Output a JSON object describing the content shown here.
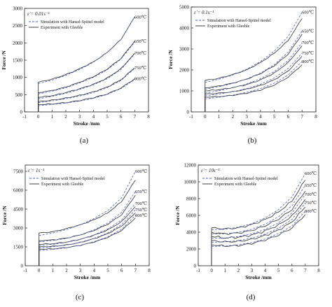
{
  "chart_data": [
    {
      "type": "line",
      "panel_label": "(a)",
      "rate_label": "ε̇ = 0.01s⁻¹",
      "xlabel": "Stroke /mm",
      "ylabel": "Force /N",
      "xlim": [
        -1,
        8
      ],
      "ylim": [
        0,
        3000
      ],
      "x_ticks": [
        "-1",
        "0",
        "1",
        "2",
        "3",
        "4",
        "5",
        "6",
        "7",
        "8"
      ],
      "y_ticks": [
        "0",
        "500",
        "1000",
        "1500",
        "2000",
        "2500",
        "3000"
      ],
      "legend": {
        "placement": "top-left",
        "entries": [
          "Simulation with Hansel-Spittel model",
          "Experiment with Gleeble"
        ]
      },
      "x": [
        0,
        1,
        2,
        3,
        4,
        5,
        6,
        7
      ],
      "series": [
        {
          "name": "600℃",
          "experiment": [
            860,
            950,
            1080,
            1250,
            1450,
            1720,
            2100,
            2750
          ],
          "simulation": [
            820,
            920,
            1060,
            1230,
            1440,
            1720,
            2100,
            2750
          ]
        },
        {
          "name": "650℃",
          "experiment": [
            560,
            620,
            720,
            860,
            1020,
            1240,
            1550,
            2050
          ],
          "simulation": [
            520,
            600,
            700,
            840,
            1000,
            1220,
            1530,
            2020
          ]
        },
        {
          "name": "700℃",
          "experiment": [
            420,
            470,
            560,
            670,
            800,
            980,
            1250,
            1700
          ],
          "simulation": [
            380,
            450,
            540,
            650,
            780,
            960,
            1230,
            1680
          ]
        },
        {
          "name": "750℃",
          "experiment": [
            300,
            340,
            400,
            480,
            580,
            720,
            930,
            1280
          ],
          "simulation": [
            270,
            320,
            380,
            460,
            560,
            700,
            910,
            1260
          ]
        },
        {
          "name": "800℃",
          "experiment": [
            210,
            230,
            270,
            330,
            410,
            520,
            690,
            960
          ],
          "simulation": [
            180,
            215,
            255,
            315,
            395,
            505,
            675,
            940
          ]
        }
      ]
    },
    {
      "type": "line",
      "panel_label": "(b)",
      "rate_label": "ε̇ = 0.1s⁻¹",
      "xlabel": "Stroke /mm",
      "ylabel": "Force /N",
      "xlim": [
        -1,
        8
      ],
      "ylim": [
        0,
        5000
      ],
      "x_ticks": [
        "-1",
        "0",
        "1",
        "2",
        "3",
        "4",
        "5",
        "6",
        "7",
        "8"
      ],
      "y_ticks": [
        "0",
        "1000",
        "2000",
        "3000",
        "4000",
        "5000"
      ],
      "legend": {
        "placement": "top-left",
        "entries": [
          "Simulation with Hansel-Spittel model",
          "Experiment with Gleeble"
        ]
      },
      "x": [
        0,
        1,
        2,
        3,
        4,
        5,
        6,
        7
      ],
      "series": [
        {
          "name": "600℃",
          "experiment": [
            1500,
            1600,
            1780,
            2000,
            2350,
            2800,
            3400,
            4450
          ],
          "simulation": [
            1400,
            1560,
            1760,
            2030,
            2400,
            2900,
            3600,
            4750
          ]
        },
        {
          "name": "650℃",
          "experiment": [
            1150,
            1230,
            1370,
            1560,
            1820,
            2200,
            2750,
            3700
          ],
          "simulation": [
            1080,
            1200,
            1360,
            1570,
            1850,
            2250,
            2850,
            3850
          ]
        },
        {
          "name": "700℃",
          "experiment": [
            1000,
            1060,
            1160,
            1300,
            1520,
            1850,
            2350,
            3150
          ],
          "simulation": [
            900,
            1010,
            1150,
            1330,
            1580,
            1930,
            2450,
            3300
          ]
        },
        {
          "name": "750℃",
          "experiment": [
            850,
            890,
            960,
            1080,
            1260,
            1530,
            1950,
            2650
          ],
          "simulation": [
            760,
            850,
            960,
            1110,
            1320,
            1620,
            2070,
            2800
          ]
        },
        {
          "name": "800℃",
          "experiment": [
            700,
            730,
            790,
            890,
            1040,
            1280,
            1650,
            2250
          ],
          "simulation": [
            620,
            700,
            800,
            930,
            1110,
            1370,
            1760,
            2400
          ]
        }
      ]
    },
    {
      "type": "line",
      "panel_label": "(c)",
      "rate_label": "ε̇ = 1s⁻¹",
      "xlabel": "Stroke /mm",
      "ylabel": "Force /N",
      "xlim": [
        -1,
        8
      ],
      "ylim": [
        0,
        8000
      ],
      "x_ticks": [
        "-1",
        "0",
        "1",
        "2",
        "3",
        "4",
        "5",
        "6",
        "7",
        "8"
      ],
      "y_ticks": [
        "0",
        "1500",
        "3000",
        "4500",
        "6000",
        "7500"
      ],
      "legend": {
        "placement": "top-left",
        "entries": [
          "Simulation with Hansel-Spittel model",
          "Experiment with Gleeble"
        ]
      },
      "x": [
        0,
        1,
        2,
        3,
        4,
        5,
        6,
        7
      ],
      "series": [
        {
          "name": "600℃",
          "experiment": [
            2600,
            2700,
            2950,
            3250,
            3650,
            4200,
            5100,
            6800
          ],
          "simulation": [
            2400,
            2600,
            2880,
            3250,
            3750,
            4400,
            5400,
            7500
          ]
        },
        {
          "name": "650℃",
          "experiment": [
            2000,
            2050,
            2200,
            2450,
            2800,
            3300,
            4050,
            5600
          ],
          "simulation": [
            1900,
            2000,
            2180,
            2450,
            2850,
            3400,
            4250,
            5900
          ]
        },
        {
          "name": "700℃",
          "experiment": [
            1700,
            1750,
            1880,
            2100,
            2420,
            2850,
            3500,
            4700
          ],
          "simulation": [
            1600,
            1700,
            1860,
            2100,
            2450,
            2930,
            3650,
            4950
          ]
        },
        {
          "name": "750℃",
          "experiment": [
            1500,
            1540,
            1650,
            1850,
            2150,
            2550,
            3150,
            4200
          ],
          "simulation": [
            1400,
            1500,
            1640,
            1860,
            2170,
            2610,
            3270,
            4450
          ]
        },
        {
          "name": "800℃",
          "experiment": [
            1300,
            1340,
            1440,
            1620,
            1880,
            2250,
            2800,
            3800
          ],
          "simulation": [
            1200,
            1300,
            1430,
            1630,
            1910,
            2300,
            2900,
            4000
          ]
        }
      ]
    },
    {
      "type": "line",
      "panel_label": "(d)",
      "rate_label": "ε̇ = 10s⁻¹",
      "xlabel": "Stroke /mm",
      "ylabel": "Force /N",
      "xlim": [
        -1,
        8
      ],
      "ylim": [
        0,
        12000
      ],
      "x_ticks": [
        "-1",
        "0",
        "1",
        "2",
        "3",
        "4",
        "5",
        "6",
        "7",
        "8"
      ],
      "y_ticks": [
        "0",
        "2000",
        "4000",
        "6000",
        "8000",
        "10000",
        "12000"
      ],
      "legend": {
        "placement": "top-left",
        "entries": [
          "Simulation with Hansel-Spittel model",
          "Experiment with Gleeble"
        ]
      },
      "x": [
        0,
        1,
        2,
        3,
        4,
        5,
        6,
        7
      ],
      "series": [
        {
          "name": "600℃",
          "experiment": [
            4500,
            4400,
            4500,
            4900,
            5500,
            6400,
            7700,
            10200
          ],
          "simulation": [
            4300,
            4350,
            4600,
            5000,
            5700,
            6700,
            8200,
            11000
          ]
        },
        {
          "name": "650℃",
          "experiment": [
            4000,
            3800,
            3900,
            4200,
            4750,
            5550,
            6700,
            8900
          ],
          "simulation": [
            3800,
            3800,
            4000,
            4350,
            4950,
            5850,
            7150,
            9600
          ]
        },
        {
          "name": "700℃",
          "experiment": [
            3500,
            3300,
            3400,
            3650,
            4150,
            4850,
            5900,
            7900
          ],
          "simulation": [
            3300,
            3300,
            3480,
            3800,
            4330,
            5120,
            6280,
            8500
          ]
        },
        {
          "name": "750℃",
          "experiment": [
            3000,
            2850,
            2900,
            3150,
            3600,
            4250,
            5200,
            7000
          ],
          "simulation": [
            2800,
            2830,
            3000,
            3290,
            3770,
            4480,
            5520,
            7500
          ]
        },
        {
          "name": "800℃",
          "experiment": [
            2500,
            2350,
            2400,
            2650,
            3050,
            3650,
            4500,
            6100
          ],
          "simulation": [
            2300,
            2350,
            2500,
            2760,
            3190,
            3830,
            4760,
            6500
          ]
        }
      ]
    }
  ]
}
